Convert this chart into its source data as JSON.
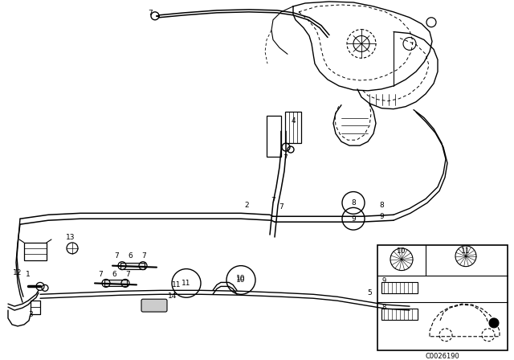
{
  "bg_color": "#ffffff",
  "fig_width": 6.4,
  "fig_height": 4.48,
  "dpi": 100,
  "catalog_number": "C0026190"
}
